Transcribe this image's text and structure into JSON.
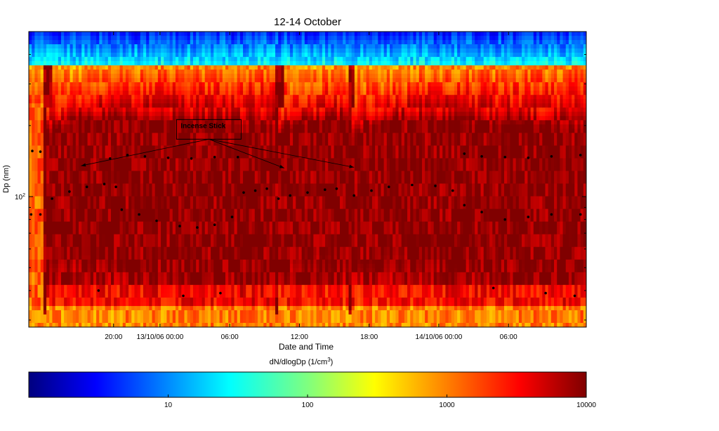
{
  "chart_data": {
    "type": "heatmap",
    "title": "12-14 October",
    "xlabel": "Date and Time",
    "ylabel": "Dp (nm)",
    "x_unit": "hours from start of record",
    "x_range": [
      0,
      48
    ],
    "x_ticks": [
      {
        "label": "20:00",
        "x": 7.3
      },
      {
        "label": "13/10/06 00:00",
        "x": 11.3
      },
      {
        "label": "06:00",
        "x": 17.3
      },
      {
        "label": "12:00",
        "x": 23.3
      },
      {
        "label": "18:00",
        "x": 29.3
      },
      {
        "label": "14/10/06 00:00",
        "x": 35.3
      },
      {
        "label": "06:00",
        "x": 41.3
      }
    ],
    "y_scale": "log",
    "y_range_nm": [
      28,
      500
    ],
    "y_tick_label": "10",
    "y_tick_exponent": "2",
    "y_tick_value": 100,
    "colorbar": {
      "label_prefix": "dN/dlogDp (1/cm",
      "label_exponent": "3",
      "label_suffix": ")",
      "scale": "log",
      "range": [
        1,
        10000
      ],
      "ticks": [
        {
          "label": "10",
          "value": 10
        },
        {
          "label": "100",
          "value": 100
        },
        {
          "label": "1000",
          "value": 1000
        },
        {
          "label": "10000",
          "value": 10000
        }
      ],
      "colormap": "jet"
    },
    "annotation": {
      "text": "Incense Stick",
      "arrows_to": [
        {
          "x": 4.5,
          "dp": 135
        },
        {
          "x": 22.0,
          "dp": 132
        },
        {
          "x": 28.0,
          "dp": 133
        }
      ],
      "box_anchor": {
        "x": 15.5,
        "dp": 175
      }
    },
    "events": [
      {
        "label": "Incense Stick",
        "start_x": 1.3
      },
      {
        "label": "Incense Stick",
        "start_x": 21.3
      },
      {
        "label": "Incense Stick",
        "start_x": 27.5
      }
    ],
    "mode_series": [
      {
        "x": 0.2,
        "dp": 84
      },
      {
        "x": 1.0,
        "dp": 84
      },
      {
        "x": 2.0,
        "dp": 98
      },
      {
        "x": 3.5,
        "dp": 105
      },
      {
        "x": 5.0,
        "dp": 110
      },
      {
        "x": 6.5,
        "dp": 113
      },
      {
        "x": 7.5,
        "dp": 110
      },
      {
        "x": 7.0,
        "dp": 145
      },
      {
        "x": 8.5,
        "dp": 150
      },
      {
        "x": 10.0,
        "dp": 148
      },
      {
        "x": 12.0,
        "dp": 146
      },
      {
        "x": 14.0,
        "dp": 145
      },
      {
        "x": 16.0,
        "dp": 147
      },
      {
        "x": 18.0,
        "dp": 147
      },
      {
        "x": 8.0,
        "dp": 88
      },
      {
        "x": 9.5,
        "dp": 84
      },
      {
        "x": 11.0,
        "dp": 79
      },
      {
        "x": 13.0,
        "dp": 75
      },
      {
        "x": 14.5,
        "dp": 74
      },
      {
        "x": 16.0,
        "dp": 76
      },
      {
        "x": 17.5,
        "dp": 82
      },
      {
        "x": 18.5,
        "dp": 104
      },
      {
        "x": 19.5,
        "dp": 106
      },
      {
        "x": 20.5,
        "dp": 108
      },
      {
        "x": 21.5,
        "dp": 98
      },
      {
        "x": 22.5,
        "dp": 101
      },
      {
        "x": 24.0,
        "dp": 104
      },
      {
        "x": 25.5,
        "dp": 107
      },
      {
        "x": 26.5,
        "dp": 108
      },
      {
        "x": 28.0,
        "dp": 101
      },
      {
        "x": 29.5,
        "dp": 106
      },
      {
        "x": 31.0,
        "dp": 110
      },
      {
        "x": 33.0,
        "dp": 112
      },
      {
        "x": 35.0,
        "dp": 111
      },
      {
        "x": 36.5,
        "dp": 106
      },
      {
        "x": 37.5,
        "dp": 152
      },
      {
        "x": 39.0,
        "dp": 148
      },
      {
        "x": 41.0,
        "dp": 147
      },
      {
        "x": 43.0,
        "dp": 146
      },
      {
        "x": 45.0,
        "dp": 148
      },
      {
        "x": 47.5,
        "dp": 150
      },
      {
        "x": 37.5,
        "dp": 92
      },
      {
        "x": 39.0,
        "dp": 86
      },
      {
        "x": 41.0,
        "dp": 80
      },
      {
        "x": 43.0,
        "dp": 82
      },
      {
        "x": 45.0,
        "dp": 84
      },
      {
        "x": 47.5,
        "dp": 84
      },
      {
        "x": 0.3,
        "dp": 156
      },
      {
        "x": 1.0,
        "dp": 155
      },
      {
        "x": 6.0,
        "dp": 40
      },
      {
        "x": 13.3,
        "dp": 38
      },
      {
        "x": 16.5,
        "dp": 39
      },
      {
        "x": 40.0,
        "dp": 41
      },
      {
        "x": 44.5,
        "dp": 39
      },
      {
        "x": 47.0,
        "dp": 38
      }
    ]
  }
}
